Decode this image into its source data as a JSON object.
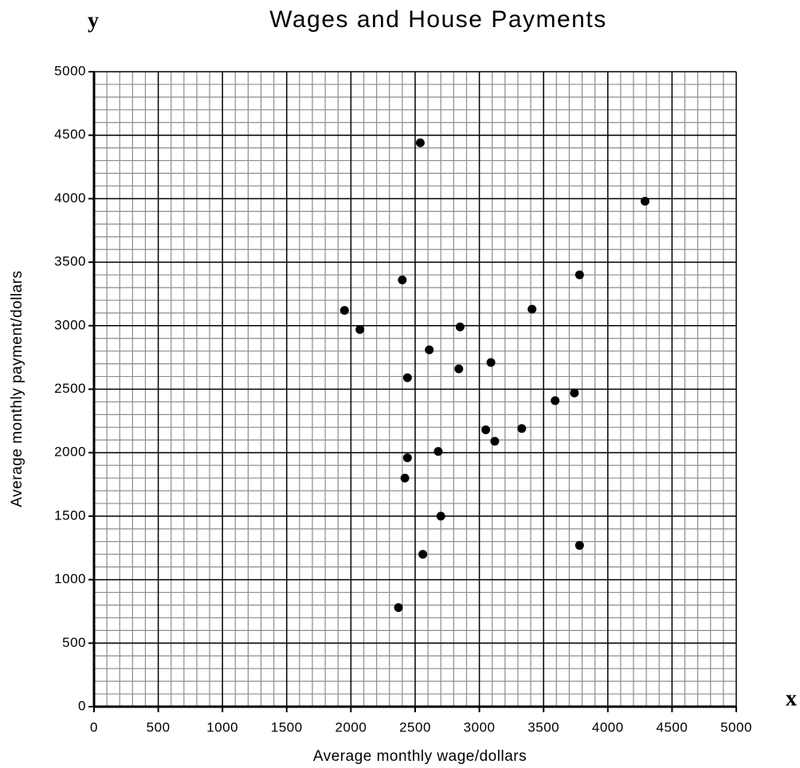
{
  "chart_data": {
    "type": "scatter",
    "title": "Wages and House Payments",
    "x_variable": "x",
    "y_variable": "y",
    "xlabel": "Average monthly wage/dollars",
    "ylabel": "Average monthly payment/dollars",
    "xlim": [
      0,
      5000
    ],
    "ylim": [
      0,
      5000
    ],
    "xticks": [
      0,
      500,
      1000,
      1500,
      2000,
      2500,
      3000,
      3500,
      4000,
      4500,
      5000
    ],
    "yticks": [
      0,
      500,
      1000,
      1500,
      2000,
      2500,
      3000,
      3500,
      4000,
      4500,
      5000
    ],
    "xminorticks": [
      100,
      200,
      300,
      400,
      600,
      700,
      800,
      900,
      1100,
      1200,
      1300,
      1400,
      1600,
      1700,
      1800,
      1900,
      2100,
      2200,
      2300,
      2400,
      2600,
      2700,
      2800,
      2900,
      3100,
      3200,
      3300,
      3400,
      3600,
      3700,
      3800,
      3900,
      4100,
      4200,
      4300,
      4400,
      4600,
      4700,
      4800,
      4900
    ],
    "yminorticks": [
      100,
      200,
      300,
      400,
      600,
      700,
      800,
      900,
      1100,
      1200,
      1300,
      1400,
      1600,
      1700,
      1800,
      1900,
      2100,
      2200,
      2300,
      2400,
      2600,
      2700,
      2800,
      2900,
      3100,
      3200,
      3300,
      3400,
      3600,
      3700,
      3800,
      3900,
      4100,
      4200,
      4300,
      4400,
      4600,
      4700,
      4800,
      4900
    ],
    "grid": true,
    "major_grid_color": "#000000",
    "minor_grid_color": "#8c8c8c",
    "color": "#000000",
    "x": [
      2540,
      4290,
      3780,
      2400,
      1950,
      3410,
      2070,
      2850,
      2610,
      3090,
      2840,
      2440,
      3740,
      3590,
      3050,
      3330,
      3120,
      2680,
      2440,
      2420,
      2700,
      3780,
      2560,
      2370
    ],
    "y": [
      4440,
      3980,
      3400,
      3360,
      3120,
      3130,
      2970,
      2990,
      2810,
      2710,
      2660,
      2590,
      2470,
      2410,
      2180,
      2190,
      2090,
      2010,
      1960,
      1800,
      1500,
      1270,
      1200,
      780
    ]
  }
}
